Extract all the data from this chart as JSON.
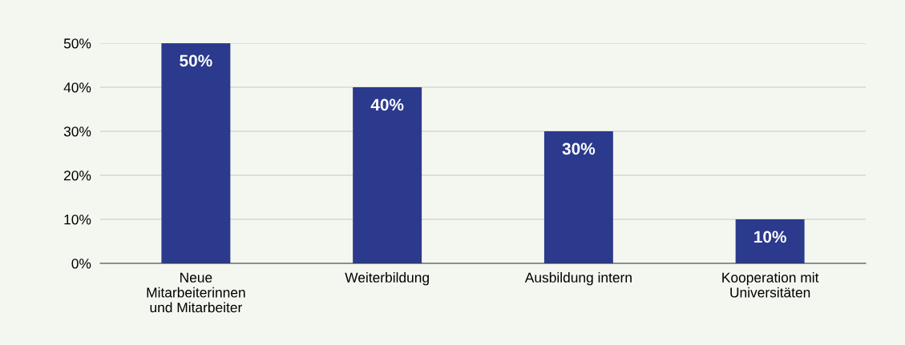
{
  "chart_data": {
    "type": "bar",
    "categories": [
      "Neue\nMitarbeiterinnen\nund Mitarbeiter",
      "Weiterbildung",
      "Ausbildung intern",
      "Kooperation mit\nUniversitäten"
    ],
    "values": [
      50,
      40,
      30,
      10
    ],
    "value_labels": [
      "50%",
      "40%",
      "30%",
      "10%"
    ],
    "color": "#2b3a8c",
    "ylim": [
      0,
      50
    ],
    "yticks": [
      {
        "value": 0,
        "label": "0%"
      },
      {
        "value": 10,
        "label": "10%"
      },
      {
        "value": 20,
        "label": "20%"
      },
      {
        "value": 30,
        "label": "30%"
      },
      {
        "value": 40,
        "label": "40%"
      },
      {
        "value": 50,
        "label": "50%"
      }
    ],
    "grid": "y"
  }
}
